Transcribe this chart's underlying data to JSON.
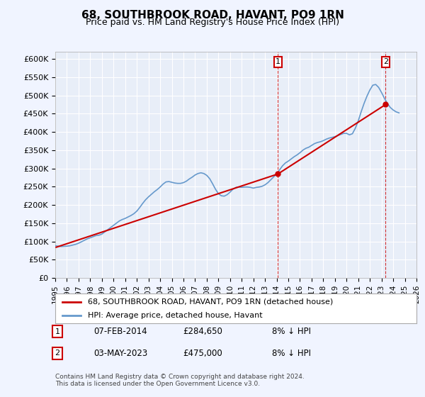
{
  "title": "68, SOUTHBROOK ROAD, HAVANT, PO9 1RN",
  "subtitle": "Price paid vs. HM Land Registry's House Price Index (HPI)",
  "legend_line1": "68, SOUTHBROOK ROAD, HAVANT, PO9 1RN (detached house)",
  "legend_line2": "HPI: Average price, detached house, Havant",
  "annotation1": {
    "num": "1",
    "date": "07-FEB-2014",
    "price": "£284,650",
    "pct": "8% ↓ HPI"
  },
  "annotation2": {
    "num": "2",
    "date": "03-MAY-2023",
    "price": "£475,000",
    "pct": "8% ↓ HPI"
  },
  "footnote": "Contains HM Land Registry data © Crown copyright and database right 2024.\nThis data is licensed under the Open Government Licence v3.0.",
  "red_color": "#cc0000",
  "blue_color": "#6699cc",
  "bg_color": "#f0f4ff",
  "plot_bg": "#e8eef8",
  "grid_color": "#ffffff",
  "annotation_line_color": "#cc0000",
  "ylim": [
    0,
    620000
  ],
  "yticks": [
    0,
    50000,
    100000,
    150000,
    200000,
    250000,
    300000,
    350000,
    400000,
    450000,
    500000,
    550000,
    600000
  ],
  "ytick_labels": [
    "£0",
    "£50K",
    "£100K",
    "£150K",
    "£200K",
    "£250K",
    "£300K",
    "£350K",
    "£400K",
    "£450K",
    "£500K",
    "£550K",
    "£600K"
  ],
  "hpi_data": {
    "dates": [
      1995.0,
      1995.25,
      1995.5,
      1995.75,
      1996.0,
      1996.25,
      1996.5,
      1996.75,
      1997.0,
      1997.25,
      1997.5,
      1997.75,
      1998.0,
      1998.25,
      1998.5,
      1998.75,
      1999.0,
      1999.25,
      1999.5,
      1999.75,
      2000.0,
      2000.25,
      2000.5,
      2000.75,
      2001.0,
      2001.25,
      2001.5,
      2001.75,
      2002.0,
      2002.25,
      2002.5,
      2002.75,
      2003.0,
      2003.25,
      2003.5,
      2003.75,
      2004.0,
      2004.25,
      2004.5,
      2004.75,
      2005.0,
      2005.25,
      2005.5,
      2005.75,
      2006.0,
      2006.25,
      2006.5,
      2006.75,
      2007.0,
      2007.25,
      2007.5,
      2007.75,
      2008.0,
      2008.25,
      2008.5,
      2008.75,
      2009.0,
      2009.25,
      2009.5,
      2009.75,
      2010.0,
      2010.25,
      2010.5,
      2010.75,
      2011.0,
      2011.25,
      2011.5,
      2011.75,
      2012.0,
      2012.25,
      2012.5,
      2012.75,
      2013.0,
      2013.25,
      2013.5,
      2013.75,
      2014.0,
      2014.25,
      2014.5,
      2014.75,
      2015.0,
      2015.25,
      2015.5,
      2015.75,
      2016.0,
      2016.25,
      2016.5,
      2016.75,
      2017.0,
      2017.25,
      2017.5,
      2017.75,
      2018.0,
      2018.25,
      2018.5,
      2018.75,
      2019.0,
      2019.25,
      2019.5,
      2019.75,
      2020.0,
      2020.25,
      2020.5,
      2020.75,
      2021.0,
      2021.25,
      2021.5,
      2021.75,
      2022.0,
      2022.25,
      2022.5,
      2022.75,
      2023.0,
      2023.25,
      2023.5,
      2023.75,
      2024.0,
      2024.25,
      2024.5
    ],
    "values": [
      88000,
      87000,
      86000,
      86500,
      87000,
      88000,
      90000,
      92000,
      95000,
      99000,
      103000,
      107000,
      110000,
      113000,
      116000,
      117000,
      120000,
      126000,
      132000,
      138000,
      144000,
      150000,
      156000,
      160000,
      163000,
      167000,
      171000,
      176000,
      183000,
      193000,
      204000,
      214000,
      222000,
      229000,
      236000,
      242000,
      249000,
      257000,
      263000,
      264000,
      262000,
      260000,
      259000,
      259000,
      261000,
      265000,
      271000,
      276000,
      282000,
      286000,
      288000,
      286000,
      281000,
      272000,
      258000,
      243000,
      231000,
      225000,
      224000,
      228000,
      235000,
      243000,
      248000,
      249000,
      248000,
      249000,
      249000,
      248000,
      246000,
      248000,
      249000,
      251000,
      255000,
      261000,
      269000,
      277000,
      285000,
      296000,
      307000,
      315000,
      320000,
      326000,
      332000,
      337000,
      343000,
      350000,
      355000,
      358000,
      363000,
      368000,
      371000,
      373000,
      376000,
      380000,
      383000,
      385000,
      387000,
      390000,
      393000,
      396000,
      396000,
      392000,
      395000,
      410000,
      430000,
      455000,
      478000,
      498000,
      515000,
      528000,
      530000,
      522000,
      508000,
      492000,
      478000,
      467000,
      460000,
      455000,
      452000
    ]
  },
  "price_data": {
    "dates": [
      1995.08,
      2014.1,
      2023.35
    ],
    "values": [
      84000,
      284650,
      475000
    ]
  },
  "purchase_markers": [
    {
      "date": 2014.1,
      "value": 284650,
      "label": "1"
    },
    {
      "date": 2023.35,
      "value": 475000,
      "label": "2"
    }
  ],
  "xmin": 1995.0,
  "xmax": 2026.0,
  "xtick_years": [
    1995,
    1996,
    1997,
    1998,
    1999,
    2000,
    2001,
    2002,
    2003,
    2004,
    2005,
    2006,
    2007,
    2008,
    2009,
    2010,
    2011,
    2012,
    2013,
    2014,
    2015,
    2016,
    2017,
    2018,
    2019,
    2020,
    2021,
    2022,
    2023,
    2024,
    2025,
    2026
  ]
}
